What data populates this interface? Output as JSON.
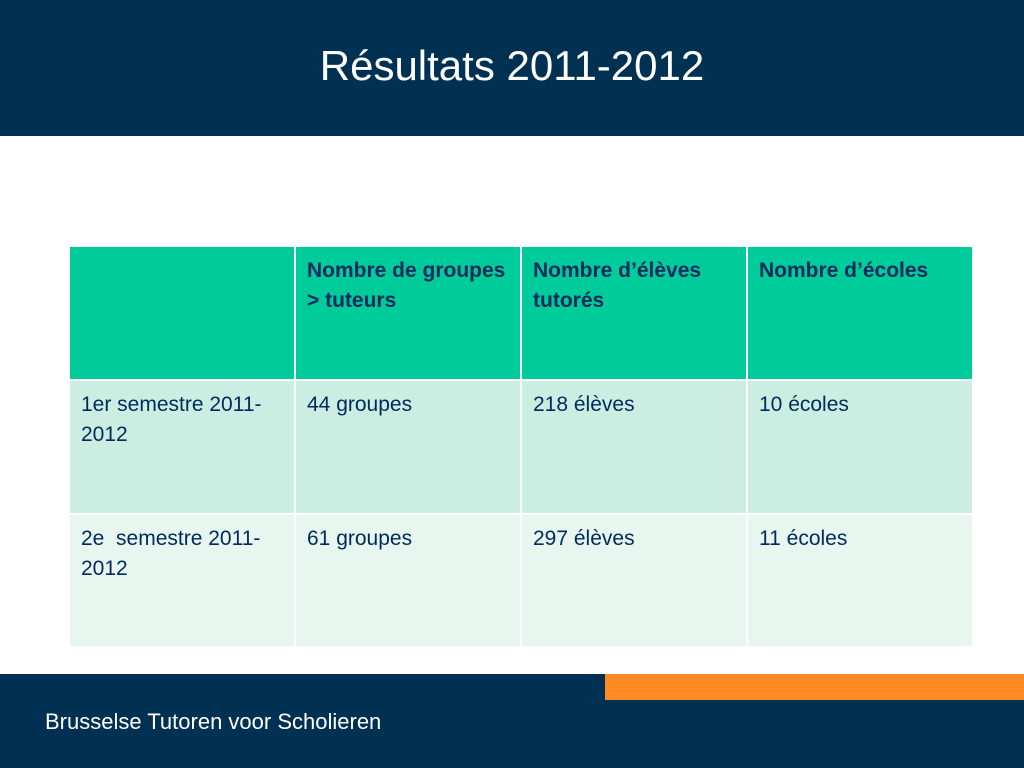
{
  "slide": {
    "title": "Résultats 2011-2012",
    "footer": "Brusselse Tutoren voor Scholieren"
  },
  "table": {
    "header": [
      "",
      "Nombre de groupes > tuteurs",
      "Nombre d’élèves tutorés",
      "Nombre d’écoles"
    ],
    "rows": [
      [
        "1er semestre 2011-2012",
        "44 groupes",
        "218 élèves",
        "10 écoles"
      ],
      [
        "2e  semestre 2011-2012",
        "61 groupes",
        "297 élèves",
        "11 écoles"
      ]
    ]
  },
  "colors": {
    "navy_band": "#003152",
    "table_header": "#00cc9b",
    "row_1": "#cceee2",
    "row_2": "#e7f6ef",
    "text_navy": "#002a5c",
    "accent_orange": "#ff8a26"
  }
}
